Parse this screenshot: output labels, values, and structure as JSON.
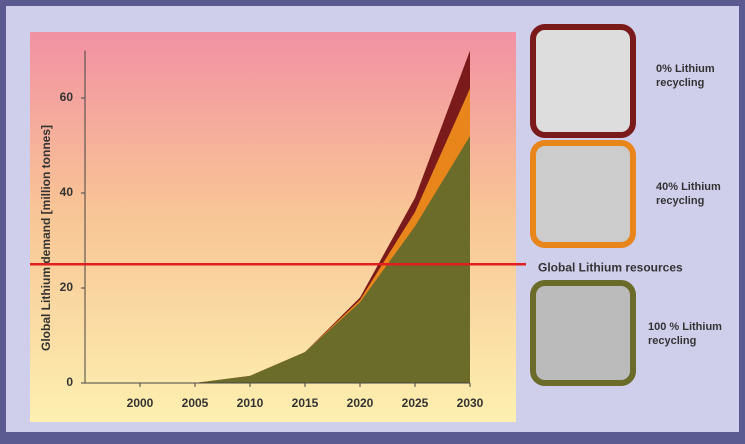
{
  "chart_data": {
    "type": "area",
    "y_label": "Global Lithium demand [million tonnes]",
    "x": [
      2005,
      2010,
      2015,
      2020,
      2025,
      2030
    ],
    "series": [
      {
        "name": "0% Lithium recycling",
        "color": "#7a1a1a",
        "values": [
          0,
          1.5,
          6.5,
          18,
          39,
          70
        ]
      },
      {
        "name": "40% Lithium recycling",
        "color": "#e8861c",
        "values": [
          0,
          1.5,
          6.5,
          17.5,
          36,
          62
        ]
      },
      {
        "name": "100 % Lithium recycling",
        "color": "#6b6b2a",
        "values": [
          0,
          1.5,
          6.5,
          17,
          33,
          52
        ]
      }
    ],
    "xlim": [
      1995,
      2030
    ],
    "xticks": [
      2000,
      2005,
      2010,
      2015,
      2020,
      2025,
      2030
    ],
    "ylim": [
      0,
      70
    ],
    "yticks": [
      0,
      20,
      40,
      60
    ],
    "annotation": {
      "label": "Global Lithium resources",
      "value": 25,
      "color": "#e02020"
    }
  }
}
